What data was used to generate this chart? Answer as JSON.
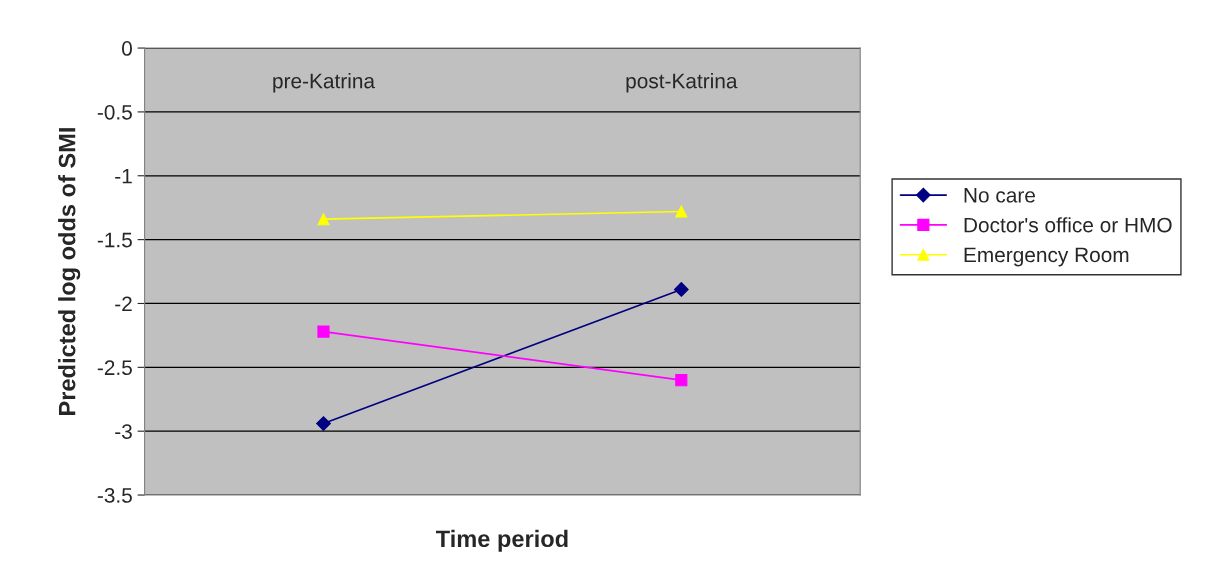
{
  "chart_data": {
    "type": "line",
    "xlabel": "Time period",
    "ylabel": "Predicted log odds of SMI",
    "categories": [
      "pre-Katrina",
      "post-Katrina"
    ],
    "series": [
      {
        "name": "No care",
        "color": "#000080",
        "marker": "diamond",
        "values": [
          -2.94,
          -1.89
        ]
      },
      {
        "name": "Doctor's office or HMO",
        "color": "#ff00ff",
        "marker": "square",
        "values": [
          -2.22,
          -2.6
        ]
      },
      {
        "name": "Emergency Room",
        "color": "#ffff00",
        "marker": "triangle",
        "values": [
          -1.34,
          -1.28
        ]
      }
    ],
    "ylim": [
      -3.5,
      0
    ],
    "yticks": [
      0,
      -0.5,
      -1,
      -1.5,
      -2,
      -2.5,
      -3,
      -3.5
    ],
    "grid": "y",
    "legend": "right"
  }
}
